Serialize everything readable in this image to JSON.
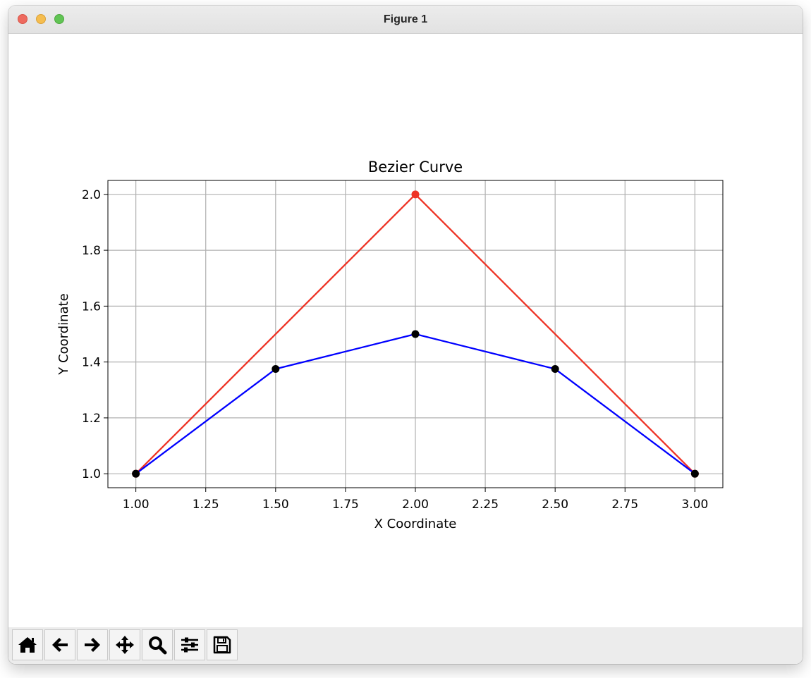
{
  "window": {
    "title": "Figure 1"
  },
  "toolbar": {
    "buttons": [
      {
        "name": "home-button",
        "icon": "home-icon"
      },
      {
        "name": "back-button",
        "icon": "arrow-left-icon"
      },
      {
        "name": "forward-button",
        "icon": "arrow-right-icon"
      },
      {
        "name": "pan-button",
        "icon": "move-icon"
      },
      {
        "name": "zoom-button",
        "icon": "magnifier-icon"
      },
      {
        "name": "configure-subplots-button",
        "icon": "sliders-icon"
      },
      {
        "name": "save-button",
        "icon": "floppy-disk-icon"
      }
    ]
  },
  "chart_data": {
    "type": "line",
    "title": "Bezier Curve",
    "xlabel": "X Coordinate",
    "ylabel": "Y Coordinate",
    "xlim": [
      0.9,
      3.1
    ],
    "ylim": [
      0.95,
      2.05
    ],
    "xticks": [
      "1.00",
      "1.25",
      "1.50",
      "1.75",
      "2.00",
      "2.25",
      "2.50",
      "2.75",
      "3.00"
    ],
    "yticks": [
      "1.0",
      "1.2",
      "1.4",
      "1.6",
      "1.8",
      "2.0"
    ],
    "grid": true,
    "series": [
      {
        "color": "#ee3224",
        "marker": "circle",
        "x": [
          1.0,
          2.0,
          3.0
        ],
        "y": [
          1.0,
          2.0,
          1.0
        ]
      },
      {
        "color": "#0000ff",
        "marker_color": "#000000",
        "marker": "circle",
        "x": [
          1.0,
          1.5,
          2.0,
          2.5,
          3.0
        ],
        "y": [
          1.0,
          1.375,
          1.5,
          1.375,
          1.0
        ]
      }
    ]
  }
}
